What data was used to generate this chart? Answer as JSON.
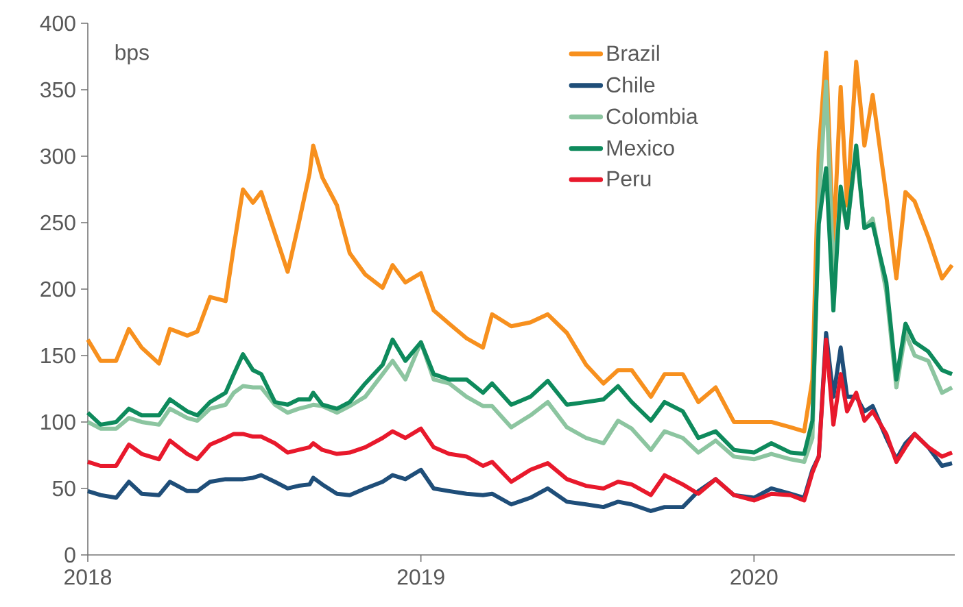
{
  "chart_data": {
    "type": "line",
    "x": [
      "2018-01-01",
      "2018-01-15",
      "2018-02-01",
      "2018-02-15",
      "2018-03-01",
      "2018-03-20",
      "2018-04-01",
      "2018-04-20",
      "2018-05-01",
      "2018-05-15",
      "2018-06-01",
      "2018-06-10",
      "2018-06-20",
      "2018-07-01",
      "2018-07-10",
      "2018-07-25",
      "2018-08-08",
      "2018-08-20",
      "2018-09-01",
      "2018-09-05",
      "2018-09-15",
      "2018-10-01",
      "2018-10-15",
      "2018-11-01",
      "2018-11-20",
      "2018-12-01",
      "2018-12-15",
      "2019-01-01",
      "2019-01-15",
      "2019-02-01",
      "2019-02-20",
      "2019-03-10",
      "2019-03-20",
      "2019-04-10",
      "2019-05-01",
      "2019-05-20",
      "2019-06-10",
      "2019-07-01",
      "2019-07-20",
      "2019-08-05",
      "2019-08-20",
      "2019-09-10",
      "2019-09-25",
      "2019-10-15",
      "2019-11-01",
      "2019-11-20",
      "2019-12-10",
      "2020-01-01",
      "2020-01-20",
      "2020-02-10",
      "2020-02-25",
      "2020-03-05",
      "2020-03-12",
      "2020-03-20",
      "2020-03-28",
      "2020-04-05",
      "2020-04-12",
      "2020-04-22",
      "2020-05-01",
      "2020-05-10",
      "2020-05-25",
      "2020-06-05",
      "2020-06-15",
      "2020-06-25",
      "2020-07-10",
      "2020-07-25",
      "2020-08-05"
    ],
    "series": [
      {
        "name": "Brazil",
        "color": "#f7901e",
        "values": [
          162,
          146,
          146,
          170,
          156,
          144,
          170,
          165,
          168,
          194,
          191,
          232,
          275,
          265,
          273,
          242,
          213,
          249,
          287,
          308,
          284,
          263,
          227,
          211,
          201,
          218,
          205,
          212,
          184,
          174,
          163,
          156,
          181,
          172,
          175,
          181,
          167,
          143,
          129,
          139,
          139,
          119,
          136,
          136,
          115,
          126,
          100,
          100,
          100,
          96,
          93,
          132,
          304,
          378,
          232,
          352,
          263,
          371,
          308,
          346,
          270,
          208,
          273,
          266,
          239,
          208,
          218
        ]
      },
      {
        "name": "Chile",
        "color": "#1f4e79",
        "values": [
          48,
          45,
          43,
          55,
          46,
          45,
          55,
          48,
          48,
          55,
          57,
          57,
          57,
          58,
          60,
          55,
          50,
          52,
          53,
          58,
          53,
          46,
          45,
          50,
          55,
          60,
          57,
          64,
          50,
          48,
          46,
          45,
          46,
          38,
          43,
          50,
          40,
          38,
          36,
          40,
          38,
          33,
          36,
          36,
          48,
          57,
          45,
          43,
          50,
          46,
          43,
          64,
          74,
          167,
          119,
          156,
          119,
          119,
          108,
          112,
          88,
          72,
          84,
          91,
          81,
          67,
          69
        ]
      },
      {
        "name": "Colombia",
        "color": "#8cc5a0",
        "values": [
          100,
          95,
          95,
          103,
          100,
          98,
          110,
          103,
          101,
          110,
          113,
          122,
          127,
          126,
          126,
          113,
          107,
          110,
          112,
          113,
          112,
          107,
          112,
          119,
          136,
          146,
          132,
          160,
          132,
          129,
          119,
          112,
          112,
          96,
          105,
          115,
          96,
          88,
          84,
          101,
          95,
          79,
          93,
          88,
          77,
          86,
          74,
          72,
          76,
          72,
          70,
          88,
          263,
          356,
          211,
          270,
          246,
          304,
          246,
          253,
          198,
          126,
          167,
          150,
          146,
          122,
          126
        ]
      },
      {
        "name": "Mexico",
        "color": "#0e8a5c",
        "values": [
          107,
          98,
          100,
          110,
          105,
          105,
          117,
          108,
          105,
          115,
          122,
          136,
          151,
          139,
          136,
          115,
          113,
          117,
          117,
          122,
          113,
          110,
          115,
          129,
          143,
          162,
          146,
          160,
          136,
          132,
          132,
          122,
          129,
          113,
          119,
          131,
          113,
          115,
          117,
          127,
          115,
          101,
          115,
          108,
          88,
          93,
          79,
          77,
          84,
          77,
          76,
          101,
          249,
          291,
          184,
          277,
          246,
          308,
          246,
          249,
          205,
          132,
          174,
          160,
          153,
          139,
          136
        ]
      },
      {
        "name": "Peru",
        "color": "#e8192c",
        "values": [
          70,
          67,
          67,
          83,
          76,
          72,
          86,
          76,
          72,
          83,
          88,
          91,
          91,
          89,
          89,
          84,
          77,
          79,
          81,
          84,
          79,
          76,
          77,
          81,
          88,
          93,
          88,
          95,
          81,
          76,
          74,
          67,
          70,
          55,
          64,
          69,
          57,
          52,
          50,
          55,
          53,
          45,
          60,
          53,
          46,
          57,
          45,
          41,
          46,
          45,
          41,
          62,
          74,
          162,
          98,
          136,
          108,
          122,
          101,
          108,
          91,
          70,
          81,
          91,
          81,
          74,
          77
        ]
      }
    ],
    "xlim": [
      "2018-01-01",
      "2020-08-08"
    ],
    "xticks": [
      {
        "value": "2018-01-01",
        "label": "2018"
      },
      {
        "value": "2019-01-01",
        "label": "2019"
      },
      {
        "value": "2020-01-01",
        "label": "2020"
      }
    ],
    "ylim": [
      0,
      400
    ],
    "yticks": [
      0,
      50,
      100,
      150,
      200,
      250,
      300,
      350,
      400
    ],
    "legend": "top right",
    "annotations": [
      "bps"
    ]
  }
}
